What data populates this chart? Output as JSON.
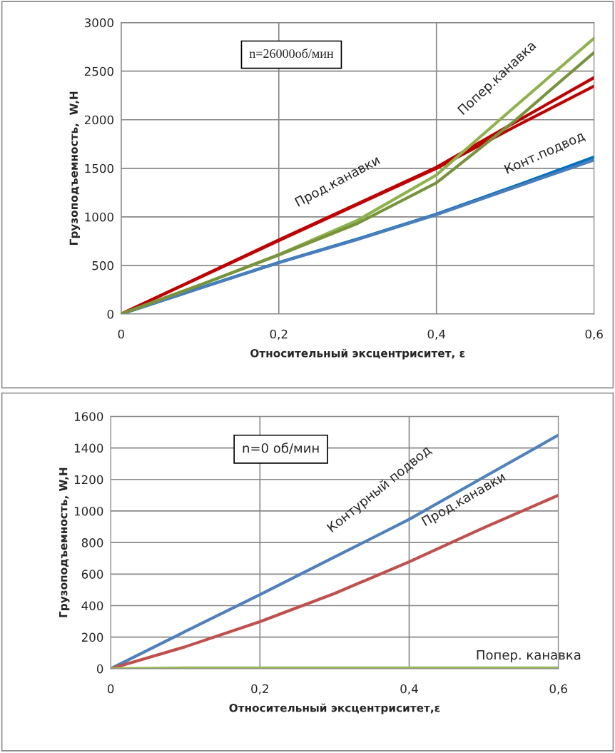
{
  "chart_data": [
    {
      "type": "line",
      "xlabel": "Относительный эксцентриситет, ε",
      "ylabel": "Грузоподъемность,  W,Н",
      "x": [
        0,
        0.1,
        0.2,
        0.3,
        0.4,
        0.5,
        0.6
      ],
      "series": [
        {
          "color": "#0070c0",
          "values": [
            0,
            268,
            531,
            772,
            1029,
            1318,
            1617
          ]
        },
        {
          "color": "#4a7ebb",
          "values": [
            0,
            265,
            528,
            768,
            1022,
            1305,
            1585
          ]
        },
        {
          "color": "#c00000",
          "values": [
            0,
            380,
            762,
            1135,
            1511,
            1975,
            2434
          ]
        },
        {
          "color": "#c00000",
          "values": [
            0,
            378,
            755,
            1128,
            1500,
            1930,
            2347
          ]
        },
        {
          "color": "#8db34a",
          "values": [
            0,
            300,
            611,
            965,
            1431,
            2138,
            2839
          ]
        },
        {
          "color": "#77933c",
          "values": [
            0,
            298,
            608,
            933,
            1350,
            1994,
            2692
          ]
        }
      ],
      "xlim": [
        0,
        0.6
      ],
      "xticks": [
        0,
        {
          "value": 0.2,
          "label": "0,2"
        },
        {
          "value": 0.4,
          "label": "0,4"
        },
        {
          "value": 0.6,
          "label": "0,6"
        }
      ],
      "ylim": [
        0,
        3000
      ],
      "yticks": [
        0,
        500,
        1000,
        1500,
        2000,
        2500,
        3000
      ],
      "grid": true,
      "legend": false,
      "annotations": [
        "n=26000об/мин",
        {
          "text": "Прод.канавки",
          "x": 0.3,
          "y": 1135
        },
        {
          "text": "Попер.канавка",
          "x": 0.5,
          "y": 2138
        },
        {
          "text": "Конт.подвод",
          "x": 0.55,
          "y": 1470
        }
      ]
    },
    {
      "type": "line",
      "xlabel": "Относительный эксцентриситет,ε",
      "ylabel": "Грузоподъемность, W,Н",
      "x": [
        0,
        0.1,
        0.2,
        0.3,
        0.4,
        0.5,
        0.6
      ],
      "series": [
        {
          "color": "#4f81bd",
          "values": [
            0,
            236,
            470,
            708,
            947,
            1215,
            1482
          ]
        },
        {
          "color": "#c0504d",
          "values": [
            0,
            139,
            298,
            477,
            678,
            894,
            1100
          ]
        },
        {
          "color": "#9bbb59",
          "values": [
            0,
            5,
            5,
            5,
            5,
            5,
            5
          ]
        }
      ],
      "xlim": [
        0,
        0.6
      ],
      "xticks": [
        0,
        {
          "value": 0.2,
          "label": "0,2"
        },
        {
          "value": 0.4,
          "label": "0,4"
        },
        {
          "value": 0.6,
          "label": "0,6"
        }
      ],
      "ylim": [
        0,
        1600
      ],
      "yticks": [
        0,
        200,
        400,
        600,
        800,
        1000,
        1200,
        1400,
        1600
      ],
      "grid": true,
      "legend": false,
      "annotations": [
        "n=0 об/мин",
        {
          "text": "Контурный подвод",
          "x": 0.4,
          "y": 947
        },
        {
          "text": "Прод.канавки",
          "x": 0.5,
          "y": 894
        },
        {
          "text": "Попер. канавка",
          "x": 0.56,
          "y": 5
        }
      ]
    }
  ]
}
